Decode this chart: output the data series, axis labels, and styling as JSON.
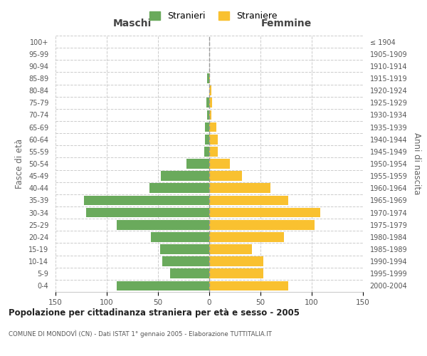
{
  "age_groups": [
    "100+",
    "95-99",
    "90-94",
    "85-89",
    "80-84",
    "75-79",
    "70-74",
    "65-69",
    "60-64",
    "55-59",
    "50-54",
    "45-49",
    "40-44",
    "35-39",
    "30-34",
    "25-29",
    "20-24",
    "15-19",
    "10-14",
    "5-9",
    "0-4"
  ],
  "birth_years": [
    "≤ 1904",
    "1905-1909",
    "1910-1914",
    "1915-1919",
    "1920-1924",
    "1925-1929",
    "1930-1934",
    "1935-1939",
    "1940-1944",
    "1945-1949",
    "1950-1954",
    "1955-1959",
    "1960-1964",
    "1965-1969",
    "1970-1974",
    "1975-1979",
    "1980-1984",
    "1985-1989",
    "1990-1994",
    "1995-1999",
    "2000-2004"
  ],
  "males": [
    0,
    0,
    0,
    2,
    0,
    3,
    2,
    4,
    4,
    5,
    22,
    47,
    58,
    122,
    120,
    90,
    57,
    48,
    46,
    38,
    90
  ],
  "females": [
    0,
    0,
    0,
    1,
    2,
    3,
    2,
    7,
    8,
    8,
    20,
    32,
    60,
    77,
    108,
    103,
    73,
    42,
    53,
    53,
    77
  ],
  "male_color": "#6aaa5c",
  "female_color": "#f9c130",
  "grid_color": "#cccccc",
  "title": "Popolazione per cittadinanza straniera per età e sesso - 2005",
  "subtitle": "COMUNE DI MONDOVÌ (CN) - Dati ISTAT 1° gennaio 2005 - Elaborazione TUTTITALIA.IT",
  "xlabel_left": "Maschi",
  "xlabel_right": "Femmine",
  "ylabel_left": "Fasce di età",
  "ylabel_right": "Anni di nascita",
  "legend_male": "Stranieri",
  "legend_female": "Straniere",
  "xlim": 150,
  "background_color": "#ffffff",
  "bar_height": 0.8,
  "dashed_line_color": "#999999"
}
